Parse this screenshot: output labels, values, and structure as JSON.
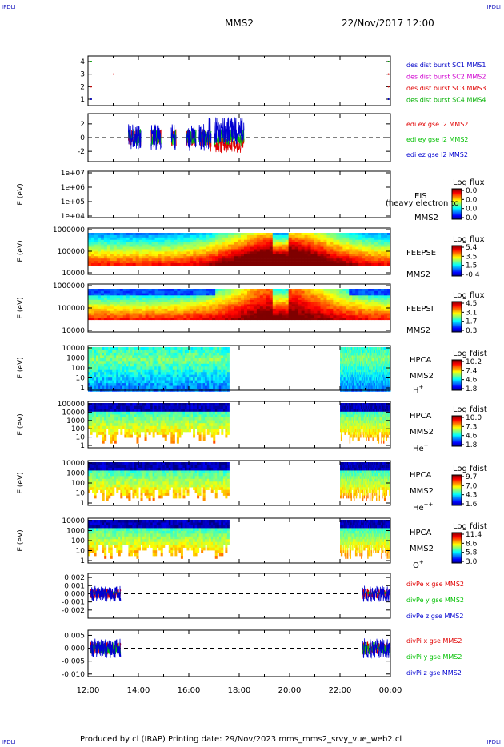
{
  "corner_tags": {
    "tl": "IPDLI",
    "tr": "IPDLI",
    "bl": "IPDLI",
    "br": "IPDLI"
  },
  "header": {
    "spacecraft": "MMS2",
    "datetime": "22/Nov/2017 12:00"
  },
  "footer": {
    "text": "Produced by cl (IRAP)   Printing date: 29/Nov/2023   mms_mms2_srvy_vue_web2.cl"
  },
  "colors": {
    "c1": "#0000c8",
    "c2": "#d000d0",
    "c3": "#e00000",
    "c4": "#00b000",
    "x": "#e00000",
    "y": "#00c000",
    "z": "#0000d0"
  },
  "chart_data": [
    {
      "type": "scatter",
      "id": "burst",
      "y_ticks": [
        "4",
        "3",
        "2",
        "1"
      ],
      "ylim": [
        0.5,
        4.5
      ],
      "legend": [
        {
          "label": "des dist burst SC1 MMS1",
          "color": "#0000c8"
        },
        {
          "label": "des dist burst SC2 MMS2",
          "color": "#d000d0"
        },
        {
          "label": "des dist burst SC3 MMS3",
          "color": "#e00000"
        },
        {
          "label": "des dist burst SC4 MMS4",
          "color": "#00b000"
        }
      ],
      "points": [
        {
          "t": 12.1,
          "sc": 4
        },
        {
          "t": 13.0,
          "sc": 3
        },
        {
          "t": 12.1,
          "sc": 2
        },
        {
          "t": 12.1,
          "sc": 1
        },
        {
          "t": 23.9,
          "sc": 4
        },
        {
          "t": 23.9,
          "sc": 3
        },
        {
          "t": 23.9,
          "sc": 2
        },
        {
          "t": 23.9,
          "sc": 1
        }
      ]
    },
    {
      "type": "line",
      "id": "edi",
      "ylabel": "(mV/m)",
      "y_ticks": [
        "2",
        "0",
        "-2"
      ],
      "ylim": [
        -3.5,
        3.5
      ],
      "legend": [
        {
          "label": "edi ex gse l2 MMS2",
          "color": "#e00000"
        },
        {
          "label": "edi ey gse l2 MMS2",
          "color": "#00c000"
        },
        {
          "label": "edi ez gse l2 MMS2",
          "color": "#0000d0"
        }
      ],
      "segments": [
        [
          13.6,
          14.1
        ],
        [
          14.5,
          14.9
        ],
        [
          15.3,
          15.5
        ],
        [
          15.9,
          16.3
        ],
        [
          16.4,
          16.9
        ],
        [
          17.0,
          18.2
        ]
      ]
    },
    {
      "type": "heatmap",
      "id": "eis",
      "ylabel": "E (eV)",
      "y_ticks": [
        "1e+07",
        "1e+06",
        "1e+05",
        "1e+04"
      ],
      "instrument": "EIS",
      "sc": "MMS2",
      "note": "(heavy electron to",
      "cb_title": "Log flux",
      "cb_ticks": [
        "0.0",
        "0.0",
        "0.0",
        "0.0"
      ]
    },
    {
      "type": "heatmap",
      "id": "feepse",
      "ylabel": "E (eV)",
      "y_ticks": [
        "1000000",
        "100000",
        "10000"
      ],
      "instrument": "FEEPSE",
      "sc": "MMS2",
      "cb_title": "Log flux",
      "cb_ticks": [
        "5.4",
        "3.5",
        "1.5",
        "-0.4"
      ]
    },
    {
      "type": "heatmap",
      "id": "feepsi",
      "ylabel": "E (eV)",
      "y_ticks": [
        "1000000",
        "100000",
        "10000"
      ],
      "instrument": "FEEPSI",
      "sc": "MMS2",
      "cb_title": "Log flux",
      "cb_ticks": [
        "4.5",
        "3.1",
        "1.7",
        "0.3"
      ]
    },
    {
      "type": "heatmap",
      "id": "hpca_h",
      "ylabel": "E (eV)",
      "y_ticks": [
        "10000",
        "1000",
        "100",
        "10",
        "1"
      ],
      "instrument": "HPCA",
      "sc": "MMS2",
      "species": "H",
      "charge": "+",
      "cb_title": "Log fdist",
      "cb_ticks": [
        "10.2",
        "7.4",
        "4.6",
        "1.8"
      ],
      "data_intervals": [
        [
          12.0,
          17.6
        ],
        [
          22.0,
          24.0
        ]
      ]
    },
    {
      "type": "heatmap",
      "id": "hpca_he",
      "ylabel": "E (eV)",
      "y_ticks": [
        "100000",
        "10000",
        "1000",
        "100",
        "10",
        "1"
      ],
      "instrument": "HPCA",
      "sc": "MMS2",
      "species": "He",
      "charge": "+",
      "cb_title": "Log fdist",
      "cb_ticks": [
        "10.0",
        "7.3",
        "4.6",
        "1.8"
      ],
      "data_intervals": [
        [
          12.0,
          17.6
        ],
        [
          22.0,
          24.0
        ]
      ]
    },
    {
      "type": "heatmap",
      "id": "hpca_hepp",
      "ylabel": "E (eV)",
      "y_ticks": [
        "10000",
        "1000",
        "100",
        "10",
        "1"
      ],
      "instrument": "HPCA",
      "sc": "MMS2",
      "species": "He",
      "charge": "++",
      "cb_title": "Log fdist",
      "cb_ticks": [
        "9.7",
        "7.0",
        "4.3",
        "1.6"
      ],
      "data_intervals": [
        [
          12.0,
          17.6
        ],
        [
          22.0,
          24.0
        ]
      ]
    },
    {
      "type": "heatmap",
      "id": "hpca_o",
      "ylabel": "E (eV)",
      "y_ticks": [
        "10000",
        "1000",
        "100",
        "10",
        "1"
      ],
      "instrument": "HPCA",
      "sc": "MMS2",
      "species": "O",
      "charge": "+",
      "cb_title": "Log fdist",
      "cb_ticks": [
        "11.4",
        "8.6",
        "5.8",
        "3.0"
      ],
      "data_intervals": [
        [
          12.0,
          17.6
        ],
        [
          22.0,
          24.0
        ]
      ]
    },
    {
      "type": "line",
      "id": "divpe",
      "ylabel": "(nPa/km)",
      "y_ticks": [
        "0.002",
        "0.001",
        "0.000",
        "-0.001",
        "-0.002"
      ],
      "ylim": [
        -0.003,
        0.0025
      ],
      "legend": [
        {
          "label": "divPe x gse MMS2",
          "color": "#e00000"
        },
        {
          "label": "divPe y gse MMS2",
          "color": "#00c000"
        },
        {
          "label": "divPe z gse MMS2",
          "color": "#0000d0"
        }
      ],
      "segments": [
        [
          12.1,
          13.3
        ],
        [
          22.9,
          24.0
        ]
      ]
    },
    {
      "type": "line",
      "id": "divpi",
      "ylabel": "(nPa/km)",
      "y_ticks": [
        "0.005",
        "0.000",
        "-0.005",
        "-0.010"
      ],
      "ylim": [
        -0.011,
        0.007
      ],
      "legend": [
        {
          "label": "divPi x gse MMS2",
          "color": "#e00000"
        },
        {
          "label": "divPi y gse MMS2",
          "color": "#00c000"
        },
        {
          "label": "divPi z gse MMS2",
          "color": "#0000d0"
        }
      ],
      "segments": [
        [
          12.1,
          13.3
        ],
        [
          22.9,
          24.0
        ]
      ]
    }
  ],
  "x_axis": {
    "ticks": [
      "12:00",
      "14:00",
      "16:00",
      "18:00",
      "20:00",
      "22:00",
      "00:00"
    ],
    "range_hours": [
      12,
      24
    ]
  }
}
